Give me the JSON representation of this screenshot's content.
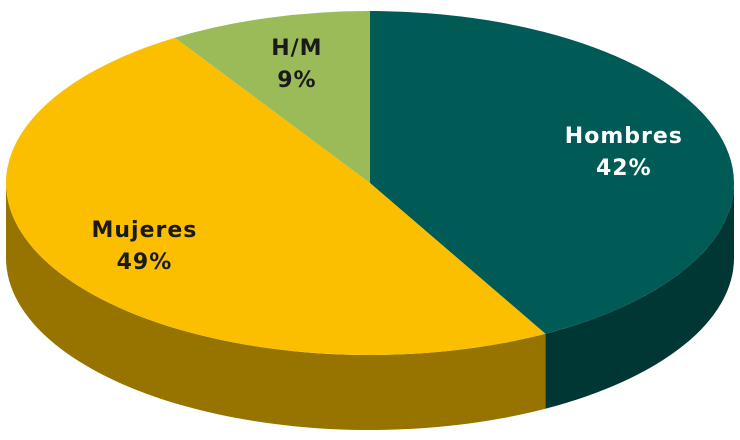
{
  "chart_data": {
    "type": "pie3d",
    "categories": [
      "Hombres",
      "Mujeres",
      "H/M"
    ],
    "values": [
      42,
      49,
      9
    ],
    "value_labels": [
      "42%",
      "49%",
      "9%"
    ],
    "colors": [
      "#005a55",
      "#fbbf00",
      "#9bbb59"
    ]
  }
}
